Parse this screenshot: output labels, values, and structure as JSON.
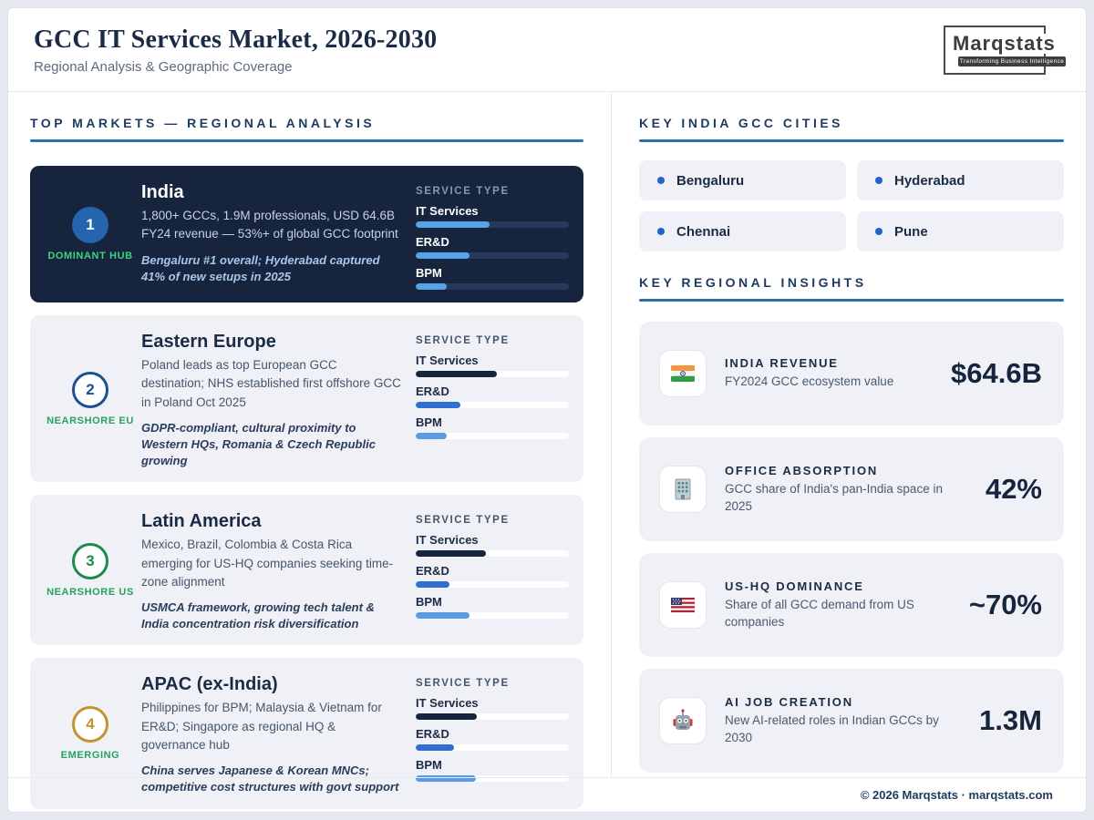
{
  "header": {
    "title": "GCC IT Services Market, 2026-2030",
    "subtitle": "Regional Analysis & Geographic Coverage",
    "logo": {
      "name": "Marqstats",
      "tagline": "Transforming Business Intelligence"
    }
  },
  "colors": {
    "accent_blue": "#2c6fad",
    "dark_navy": "#16243e",
    "green_label": "#27a15e",
    "bright_green": "#3ed47e",
    "gold": "#c59230",
    "bar_dark": "#16243e",
    "bar_mid_blue": "#2e6fd0",
    "bar_light_blue": "#5b9be4"
  },
  "left_panel": {
    "heading": "TOP MARKETS — REGIONAL ANALYSIS",
    "service_type_label": "SERVICE TYPE",
    "markets": [
      {
        "rank": "1",
        "badge_label": "DOMINANT HUB",
        "name": "India",
        "description": "1,800+ GCCs, 1.9M professionals, USD 64.6B FY24 revenue — 53%+ of global GCC footprint",
        "note": "Bengaluru #1 overall; Hyderabad captured 41% of new setups in 2025",
        "services": [
          {
            "label": "IT Services",
            "pct": 48
          },
          {
            "label": "ER&D",
            "pct": 35
          },
          {
            "label": "BPM",
            "pct": 20
          }
        ]
      },
      {
        "rank": "2",
        "badge_label": "NEARSHORE EU",
        "name": "Eastern Europe",
        "description": "Poland leads as top European GCC destination; NHS established first offshore GCC in Poland Oct 2025",
        "note": "GDPR-compliant, cultural proximity to Western HQs, Romania & Czech Republic growing",
        "services": [
          {
            "label": "IT Services",
            "pct": 53
          },
          {
            "label": "ER&D",
            "pct": 29
          },
          {
            "label": "BPM",
            "pct": 20
          }
        ]
      },
      {
        "rank": "3",
        "badge_label": "NEARSHORE US",
        "name": "Latin America",
        "description": "Mexico, Brazil, Colombia & Costa Rica emerging for US-HQ companies seeking time-zone alignment",
        "note": "USMCA framework, growing tech talent & India concentration risk diversification",
        "services": [
          {
            "label": "IT Services",
            "pct": 46
          },
          {
            "label": "ER&D",
            "pct": 22
          },
          {
            "label": "BPM",
            "pct": 35
          }
        ]
      },
      {
        "rank": "4",
        "badge_label": "EMERGING",
        "name": "APAC (ex-India)",
        "description": "Philippines for BPM; Malaysia & Vietnam for ER&D; Singapore as regional HQ & governance hub",
        "note": "China serves Japanese & Korean MNCs; competitive cost structures with govt support",
        "services": [
          {
            "label": "IT Services",
            "pct": 40
          },
          {
            "label": "ER&D",
            "pct": 25
          },
          {
            "label": "BPM",
            "pct": 39
          }
        ]
      }
    ]
  },
  "right_panel": {
    "cities_heading": "KEY INDIA GCC CITIES",
    "cities": [
      "Bengaluru",
      "Hyderabad",
      "Chennai",
      "Pune"
    ],
    "insights_heading": "KEY REGIONAL INSIGHTS",
    "insights": [
      {
        "icon": "india-flag-icon",
        "title": "INDIA REVENUE",
        "description": "FY2024 GCC ecosystem value",
        "value": "$64.6B"
      },
      {
        "icon": "office-building-icon",
        "title": "OFFICE ABSORPTION",
        "description": "GCC share of India's pan-India space in 2025",
        "value": "42%"
      },
      {
        "icon": "us-flag-icon",
        "title": "US-HQ DOMINANCE",
        "description": "Share of all GCC demand from US companies",
        "value": "~70%"
      },
      {
        "icon": "robot-icon",
        "title": "AI JOB CREATION",
        "description": "New AI-related roles in Indian GCCs by 2030",
        "value": "1.3M"
      }
    ]
  },
  "footer": {
    "text": "© 2026 Marqstats · marqstats.com"
  }
}
